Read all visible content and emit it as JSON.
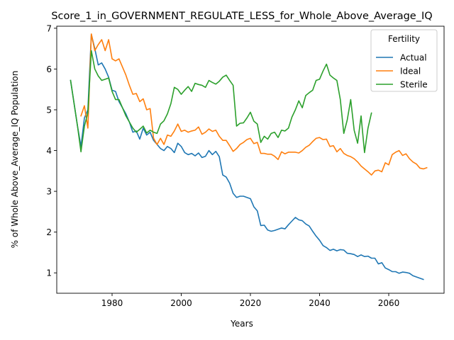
{
  "chart_data": {
    "type": "line",
    "title": "Score_1_in_GOVERNMENT_REGULATE_LESS_for_Whole_Above_Average_IQ",
    "xlabel": "Years",
    "ylabel": "% of Whole Above_Average_IQ Population",
    "xlim": [
      1964,
      2076
    ],
    "ylim": [
      0.5,
      7.05
    ],
    "xticks": [
      1980,
      2000,
      2020,
      2040,
      2060
    ],
    "yticks": [
      1,
      2,
      3,
      4,
      5,
      6,
      7
    ],
    "grid": false,
    "legend": {
      "title": "Fertility",
      "placement": "top-right"
    },
    "series": [
      {
        "name": "Actual",
        "color": "#1f77b4",
        "points": [
          [
            1968,
            5.72
          ],
          [
            1970,
            4.6
          ],
          [
            1971,
            4.1
          ],
          [
            1972,
            4.8
          ],
          [
            1973,
            5.0
          ],
          [
            1974,
            6.85
          ],
          [
            1975,
            6.5
          ],
          [
            1976,
            6.1
          ],
          [
            1977,
            6.15
          ],
          [
            1978,
            6.0
          ],
          [
            1979,
            5.8
          ],
          [
            1980,
            5.48
          ],
          [
            1981,
            5.45
          ],
          [
            1982,
            5.2
          ],
          [
            1983,
            5.05
          ],
          [
            1984,
            4.9
          ],
          [
            1985,
            4.7
          ],
          [
            1986,
            4.45
          ],
          [
            1987,
            4.48
          ],
          [
            1988,
            4.28
          ],
          [
            1989,
            4.55
          ],
          [
            1990,
            4.38
          ],
          [
            1991,
            4.45
          ],
          [
            1992,
            4.25
          ],
          [
            1993,
            4.15
          ],
          [
            1994,
            4.05
          ],
          [
            1995,
            4.0
          ],
          [
            1996,
            4.1
          ],
          [
            1997,
            4.05
          ],
          [
            1998,
            3.95
          ],
          [
            1999,
            4.18
          ],
          [
            2000,
            4.1
          ],
          [
            2001,
            3.95
          ],
          [
            2002,
            3.9
          ],
          [
            2003,
            3.93
          ],
          [
            2004,
            3.87
          ],
          [
            2005,
            3.94
          ],
          [
            2006,
            3.83
          ],
          [
            2007,
            3.86
          ],
          [
            2008,
            4.0
          ],
          [
            2009,
            3.9
          ],
          [
            2010,
            3.98
          ],
          [
            2011,
            3.85
          ],
          [
            2012,
            3.4
          ],
          [
            2013,
            3.35
          ],
          [
            2014,
            3.2
          ],
          [
            2015,
            2.95
          ],
          [
            2016,
            2.85
          ],
          [
            2017,
            2.88
          ],
          [
            2018,
            2.88
          ],
          [
            2019,
            2.85
          ],
          [
            2020,
            2.82
          ],
          [
            2021,
            2.62
          ],
          [
            2022,
            2.52
          ],
          [
            2023,
            2.16
          ],
          [
            2024,
            2.17
          ],
          [
            2025,
            2.05
          ],
          [
            2026,
            2.02
          ],
          [
            2027,
            2.04
          ],
          [
            2028,
            2.07
          ],
          [
            2029,
            2.1
          ],
          [
            2030,
            2.08
          ],
          [
            2031,
            2.18
          ],
          [
            2032,
            2.27
          ],
          [
            2033,
            2.36
          ],
          [
            2034,
            2.3
          ],
          [
            2035,
            2.28
          ],
          [
            2036,
            2.2
          ],
          [
            2037,
            2.15
          ],
          [
            2038,
            2.02
          ],
          [
            2039,
            1.9
          ],
          [
            2040,
            1.8
          ],
          [
            2041,
            1.67
          ],
          [
            2042,
            1.62
          ],
          [
            2043,
            1.55
          ],
          [
            2044,
            1.58
          ],
          [
            2045,
            1.54
          ],
          [
            2046,
            1.57
          ],
          [
            2047,
            1.56
          ],
          [
            2048,
            1.48
          ],
          [
            2049,
            1.47
          ],
          [
            2050,
            1.45
          ],
          [
            2051,
            1.4
          ],
          [
            2052,
            1.44
          ],
          [
            2053,
            1.4
          ],
          [
            2054,
            1.41
          ],
          [
            2055,
            1.36
          ],
          [
            2056,
            1.36
          ],
          [
            2057,
            1.22
          ],
          [
            2058,
            1.25
          ],
          [
            2059,
            1.12
          ],
          [
            2060,
            1.08
          ],
          [
            2061,
            1.03
          ],
          [
            2062,
            1.03
          ],
          [
            2063,
            0.99
          ],
          [
            2064,
            1.02
          ],
          [
            2065,
            1.01
          ],
          [
            2066,
            0.99
          ],
          [
            2067,
            0.93
          ],
          [
            2068,
            0.9
          ],
          [
            2069,
            0.87
          ],
          [
            2070,
            0.84
          ]
        ]
      },
      {
        "name": "Ideal",
        "color": "#ff7f0e",
        "points": [
          [
            1971,
            4.85
          ],
          [
            1972,
            5.1
          ],
          [
            1973,
            4.55
          ],
          [
            1974,
            6.86
          ],
          [
            1975,
            6.45
          ],
          [
            1976,
            6.6
          ],
          [
            1977,
            6.72
          ],
          [
            1978,
            6.45
          ],
          [
            1979,
            6.72
          ],
          [
            1980,
            6.25
          ],
          [
            1981,
            6.2
          ],
          [
            1982,
            6.25
          ],
          [
            1983,
            6.05
          ],
          [
            1984,
            5.85
          ],
          [
            1985,
            5.6
          ],
          [
            1986,
            5.38
          ],
          [
            1987,
            5.4
          ],
          [
            1988,
            5.2
          ],
          [
            1989,
            5.27
          ],
          [
            1990,
            5.0
          ],
          [
            1991,
            5.03
          ],
          [
            1992,
            4.3
          ],
          [
            1993,
            4.15
          ],
          [
            1994,
            4.3
          ],
          [
            1995,
            4.15
          ],
          [
            1996,
            4.38
          ],
          [
            1997,
            4.35
          ],
          [
            1998,
            4.48
          ],
          [
            1999,
            4.65
          ],
          [
            2000,
            4.47
          ],
          [
            2001,
            4.5
          ],
          [
            2002,
            4.45
          ],
          [
            2003,
            4.48
          ],
          [
            2004,
            4.5
          ],
          [
            2005,
            4.58
          ],
          [
            2006,
            4.4
          ],
          [
            2007,
            4.45
          ],
          [
            2008,
            4.53
          ],
          [
            2009,
            4.47
          ],
          [
            2010,
            4.5
          ],
          [
            2011,
            4.35
          ],
          [
            2012,
            4.25
          ],
          [
            2013,
            4.25
          ],
          [
            2014,
            4.12
          ],
          [
            2015,
            3.98
          ],
          [
            2016,
            4.05
          ],
          [
            2017,
            4.15
          ],
          [
            2018,
            4.2
          ],
          [
            2019,
            4.27
          ],
          [
            2020,
            4.3
          ],
          [
            2021,
            4.17
          ],
          [
            2022,
            4.2
          ],
          [
            2023,
            3.93
          ],
          [
            2024,
            3.93
          ],
          [
            2025,
            3.91
          ],
          [
            2026,
            3.91
          ],
          [
            2027,
            3.86
          ],
          [
            2028,
            3.78
          ],
          [
            2029,
            3.97
          ],
          [
            2030,
            3.92
          ],
          [
            2031,
            3.96
          ],
          [
            2032,
            3.96
          ],
          [
            2033,
            3.96
          ],
          [
            2034,
            3.94
          ],
          [
            2035,
            4.0
          ],
          [
            2036,
            4.08
          ],
          [
            2037,
            4.13
          ],
          [
            2038,
            4.22
          ],
          [
            2039,
            4.3
          ],
          [
            2040,
            4.32
          ],
          [
            2041,
            4.27
          ],
          [
            2042,
            4.28
          ],
          [
            2043,
            4.1
          ],
          [
            2044,
            4.12
          ],
          [
            2045,
            3.97
          ],
          [
            2046,
            4.05
          ],
          [
            2047,
            3.93
          ],
          [
            2048,
            3.88
          ],
          [
            2049,
            3.85
          ],
          [
            2050,
            3.8
          ],
          [
            2051,
            3.72
          ],
          [
            2052,
            3.62
          ],
          [
            2053,
            3.55
          ],
          [
            2054,
            3.48
          ],
          [
            2055,
            3.4
          ],
          [
            2056,
            3.5
          ],
          [
            2057,
            3.52
          ],
          [
            2058,
            3.48
          ],
          [
            2059,
            3.7
          ],
          [
            2060,
            3.65
          ],
          [
            2061,
            3.9
          ],
          [
            2062,
            3.96
          ],
          [
            2063,
            4.0
          ],
          [
            2064,
            3.88
          ],
          [
            2065,
            3.92
          ],
          [
            2066,
            3.8
          ],
          [
            2067,
            3.72
          ],
          [
            2068,
            3.67
          ],
          [
            2069,
            3.57
          ],
          [
            2070,
            3.55
          ],
          [
            2071,
            3.58
          ]
        ]
      },
      {
        "name": "Sterile",
        "color": "#2ca02c",
        "points": [
          [
            1968,
            5.72
          ],
          [
            1970,
            4.6
          ],
          [
            1971,
            3.97
          ],
          [
            1972,
            4.6
          ],
          [
            1973,
            4.93
          ],
          [
            1974,
            6.45
          ],
          [
            1975,
            6.0
          ],
          [
            1976,
            5.83
          ],
          [
            1977,
            5.72
          ],
          [
            1978,
            5.75
          ],
          [
            1979,
            5.78
          ],
          [
            1980,
            5.45
          ],
          [
            1981,
            5.25
          ],
          [
            1982,
            5.25
          ],
          [
            1983,
            5.05
          ],
          [
            1984,
            4.85
          ],
          [
            1985,
            4.7
          ],
          [
            1986,
            4.55
          ],
          [
            1987,
            4.45
          ],
          [
            1988,
            4.52
          ],
          [
            1989,
            4.6
          ],
          [
            1990,
            4.43
          ],
          [
            1991,
            4.5
          ],
          [
            1992,
            4.45
          ],
          [
            1993,
            4.42
          ],
          [
            1994,
            4.65
          ],
          [
            1995,
            4.73
          ],
          [
            1996,
            4.9
          ],
          [
            1997,
            5.15
          ],
          [
            1998,
            5.55
          ],
          [
            1999,
            5.5
          ],
          [
            2000,
            5.38
          ],
          [
            2001,
            5.48
          ],
          [
            2002,
            5.57
          ],
          [
            2003,
            5.45
          ],
          [
            2004,
            5.65
          ],
          [
            2005,
            5.62
          ],
          [
            2006,
            5.6
          ],
          [
            2007,
            5.55
          ],
          [
            2008,
            5.72
          ],
          [
            2009,
            5.67
          ],
          [
            2010,
            5.63
          ],
          [
            2011,
            5.7
          ],
          [
            2012,
            5.8
          ],
          [
            2013,
            5.85
          ],
          [
            2014,
            5.72
          ],
          [
            2015,
            5.6
          ],
          [
            2016,
            4.6
          ],
          [
            2017,
            4.67
          ],
          [
            2018,
            4.68
          ],
          [
            2019,
            4.8
          ],
          [
            2020,
            4.94
          ],
          [
            2021,
            4.72
          ],
          [
            2022,
            4.65
          ],
          [
            2023,
            4.2
          ],
          [
            2024,
            4.35
          ],
          [
            2025,
            4.28
          ],
          [
            2026,
            4.42
          ],
          [
            2027,
            4.45
          ],
          [
            2028,
            4.32
          ],
          [
            2029,
            4.5
          ],
          [
            2030,
            4.48
          ],
          [
            2031,
            4.55
          ],
          [
            2032,
            4.82
          ],
          [
            2033,
            5.0
          ],
          [
            2034,
            5.22
          ],
          [
            2035,
            5.05
          ],
          [
            2036,
            5.35
          ],
          [
            2037,
            5.42
          ],
          [
            2038,
            5.48
          ],
          [
            2039,
            5.72
          ],
          [
            2040,
            5.75
          ],
          [
            2041,
            5.95
          ],
          [
            2042,
            6.12
          ],
          [
            2043,
            5.85
          ],
          [
            2044,
            5.78
          ],
          [
            2045,
            5.72
          ],
          [
            2046,
            5.25
          ],
          [
            2047,
            4.42
          ],
          [
            2048,
            4.75
          ],
          [
            2049,
            5.25
          ],
          [
            2050,
            4.5
          ],
          [
            2051,
            4.18
          ],
          [
            2052,
            4.85
          ],
          [
            2053,
            3.95
          ],
          [
            2054,
            4.55
          ],
          [
            2055,
            4.92
          ]
        ]
      }
    ]
  }
}
